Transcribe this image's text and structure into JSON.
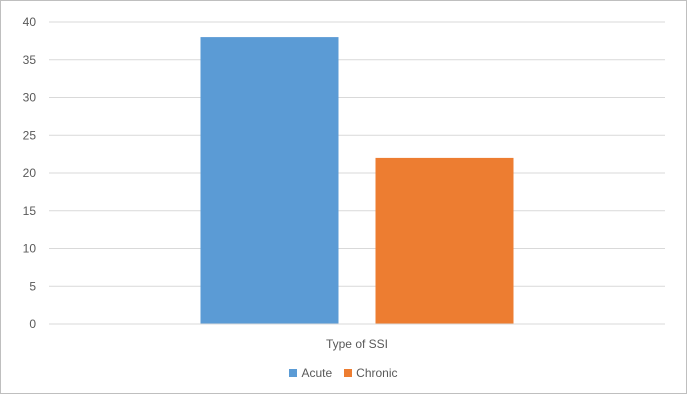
{
  "chart_data": {
    "type": "bar",
    "categories": [
      "Type of SSI"
    ],
    "series": [
      {
        "name": "Acute",
        "values": [
          38
        ],
        "color": "#5b9bd5"
      },
      {
        "name": "Chronic",
        "values": [
          22
        ],
        "color": "#ed7d31"
      }
    ],
    "ylim": [
      0,
      40
    ],
    "yticks": [
      0,
      5,
      10,
      15,
      20,
      25,
      30,
      35,
      40
    ],
    "grid": true,
    "legend_position": "bottom"
  }
}
